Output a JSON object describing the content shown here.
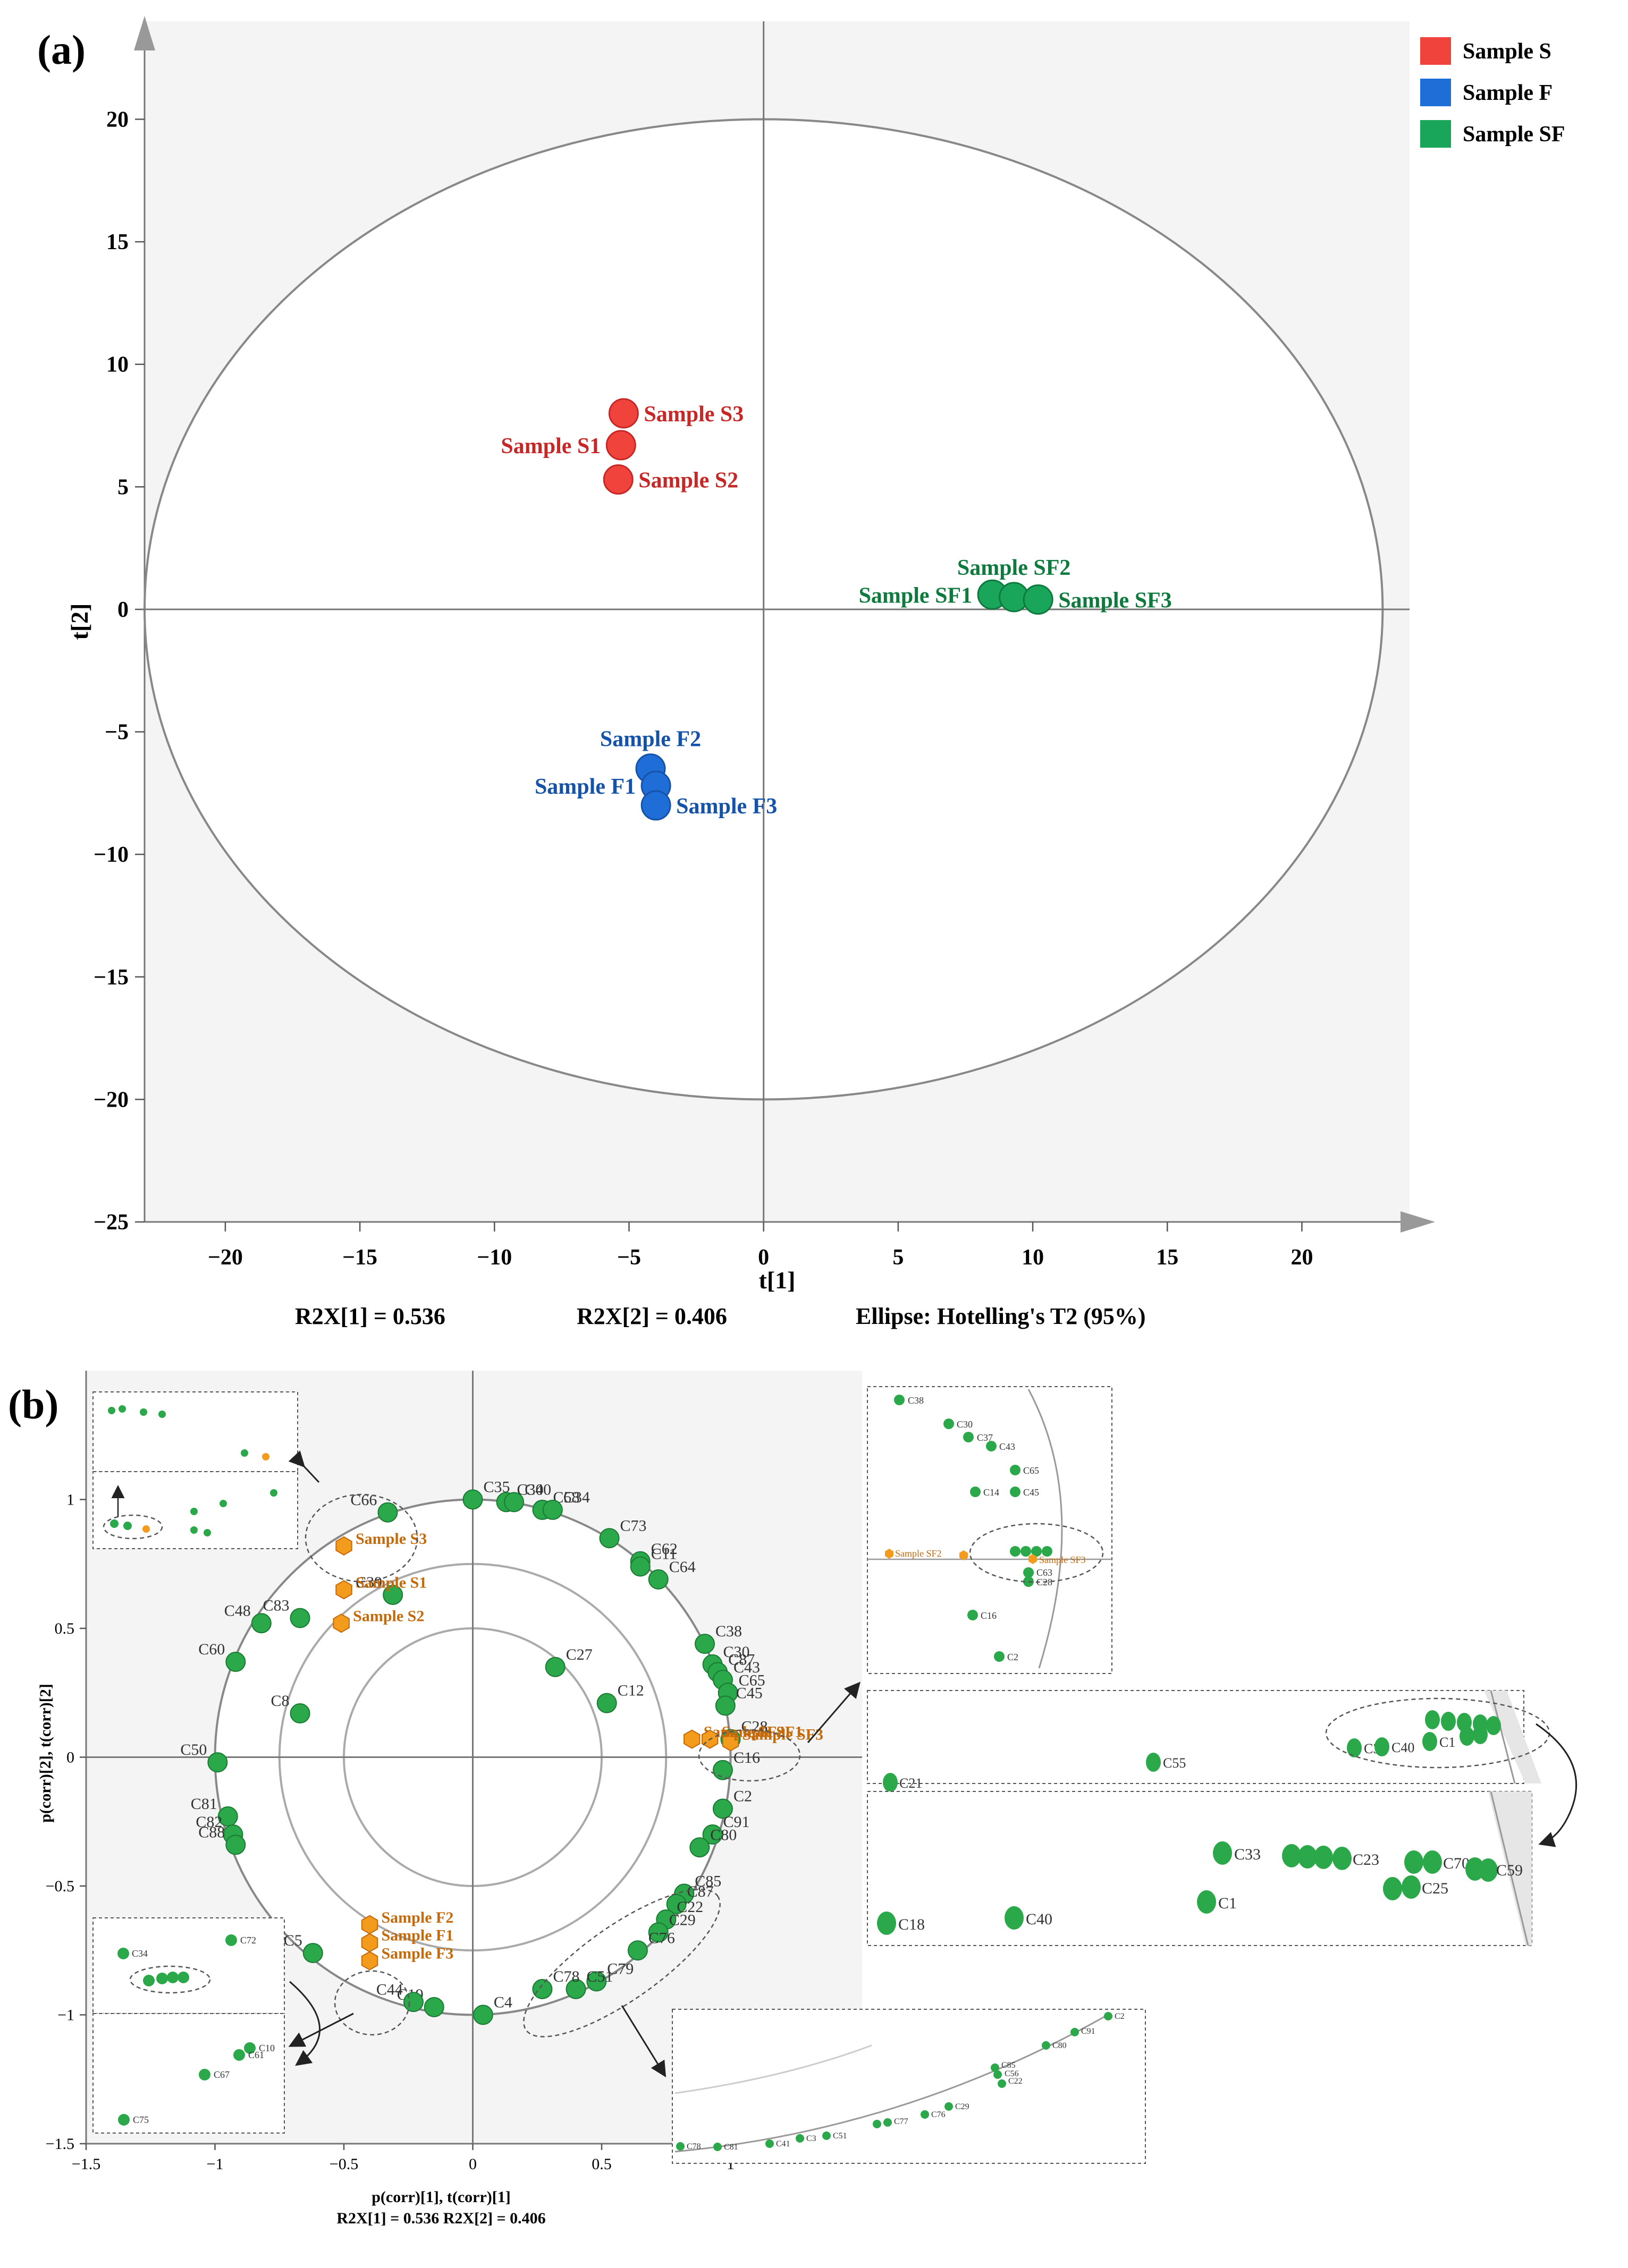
{
  "panel_a": {
    "label": "(a)",
    "footer": [
      "R2X[1] = 0.536",
      "R2X[2] = 0.406",
      "Ellipse: Hotelling's T2 (95%)"
    ]
  },
  "panel_b": {
    "label": "(b)",
    "footer": "R2X[1] = 0.536 R2X[2] = 0.406"
  },
  "colors": {
    "S": "#f0433c",
    "F": "#1f6ed8",
    "SF": "#19a55a",
    "sample_b": "#f29b1c",
    "var": "#2aa84a"
  },
  "chart_data": [
    {
      "type": "scatter",
      "title": "Scores plot",
      "xlabel": "t[1]",
      "ylabel": "t[2]",
      "xlim": [
        -23,
        24
      ],
      "ylim": [
        -25,
        24
      ],
      "xticks": [
        -20,
        -15,
        -10,
        -5,
        0,
        5,
        10,
        15,
        20
      ],
      "yticks": [
        20,
        15,
        10,
        5,
        0,
        -5,
        -10,
        -15,
        -20,
        -25
      ],
      "xtick_labels": [
        "−20",
        "−15",
        "−10",
        "−5",
        "0",
        "5",
        "10",
        "15",
        "20"
      ],
      "ytick_labels": [
        "20",
        "15",
        "10",
        "5",
        "0",
        "−5",
        "−10",
        "−15",
        "−20",
        "−25"
      ],
      "ellipse": {
        "rx": 23,
        "ry": 20
      },
      "legend": {
        "position": "top-right",
        "entries": [
          {
            "label": "Sample S",
            "group": "S"
          },
          {
            "label": "Sample F",
            "group": "F"
          },
          {
            "label": "Sample SF",
            "group": "SF"
          }
        ]
      },
      "series": [
        {
          "name": "Sample S",
          "group": "S",
          "points": [
            {
              "label": "Sample S3",
              "x": -5.2,
              "y": 8.0,
              "side": "right"
            },
            {
              "label": "Sample S1",
              "x": -5.3,
              "y": 6.7,
              "side": "left"
            },
            {
              "label": "Sample S2",
              "x": -5.4,
              "y": 5.3,
              "side": "right"
            }
          ]
        },
        {
          "name": "Sample F",
          "group": "F",
          "points": [
            {
              "label": "Sample F2",
              "x": -4.2,
              "y": -6.5,
              "side": "top"
            },
            {
              "label": "Sample F1",
              "x": -4.0,
              "y": -7.2,
              "side": "left"
            },
            {
              "label": "Sample F3",
              "x": -4.0,
              "y": -8.0,
              "side": "right"
            }
          ]
        },
        {
          "name": "Sample SF",
          "group": "SF",
          "points": [
            {
              "label": "Sample SF1",
              "x": 8.5,
              "y": 0.6,
              "side": "left"
            },
            {
              "label": "Sample SF2",
              "x": 9.3,
              "y": 0.5,
              "side": "top"
            },
            {
              "label": "Sample SF3",
              "x": 10.2,
              "y": 0.4,
              "side": "right"
            }
          ]
        }
      ]
    },
    {
      "type": "scatter",
      "title": "Correlation loadings plot",
      "xlabel": "p(corr)[1], t(corr)[1]",
      "ylabel": "p(corr)[2], t(corr)[2]",
      "xlim": [
        -1.5,
        1.5
      ],
      "ylim": [
        -1.5,
        1.5
      ],
      "xticks": [
        -1.5,
        -1,
        -0.5,
        0,
        0.5,
        1
      ],
      "yticks": [
        1,
        0.5,
        0,
        -0.5,
        -1,
        -1.5
      ],
      "xtick_labels": [
        "−1.5",
        "−1",
        "−0.5",
        "0",
        "0.5",
        "1"
      ],
      "ytick_labels": [
        "1",
        "0.5",
        "0",
        "−0.5",
        "−1",
        "−1.5"
      ],
      "circles": [
        1.0,
        0.75,
        0.5
      ],
      "samples": [
        {
          "label": "Sample S3",
          "x": -0.5,
          "y": 0.82
        },
        {
          "label": "Sample S1",
          "x": -0.5,
          "y": 0.65
        },
        {
          "label": "Sample S2",
          "x": -0.51,
          "y": 0.52
        },
        {
          "label": "Sample F2",
          "x": -0.4,
          "y": -0.65
        },
        {
          "label": "Sample F1",
          "x": -0.4,
          "y": -0.72
        },
        {
          "label": "Sample F3",
          "x": -0.4,
          "y": -0.79
        },
        {
          "label": "Sample SF3",
          "x": 1.0,
          "y": 0.06
        },
        {
          "label": "Sample SF2",
          "x": 0.85,
          "y": 0.07
        },
        {
          "label": "Sample SF1",
          "x": 0.92,
          "y": 0.07
        }
      ],
      "variables": [
        {
          "label": "C35",
          "x": 0.0,
          "y": 1.0
        },
        {
          "label": "C30",
          "x": 0.13,
          "y": 0.99
        },
        {
          "label": "C40",
          "x": 0.16,
          "y": 0.99
        },
        {
          "label": "C58",
          "x": 0.27,
          "y": 0.96
        },
        {
          "label": "C34",
          "x": 0.31,
          "y": 0.96
        },
        {
          "label": "C73",
          "x": 0.53,
          "y": 0.85
        },
        {
          "label": "C62",
          "x": 0.65,
          "y": 0.76
        },
        {
          "label": "C11",
          "x": 0.65,
          "y": 0.74
        },
        {
          "label": "C64",
          "x": 0.72,
          "y": 0.69
        },
        {
          "label": "C38",
          "x": 0.9,
          "y": 0.44
        },
        {
          "label": "C30",
          "x": 0.93,
          "y": 0.36
        },
        {
          "label": "C87",
          "x": 0.95,
          "y": 0.33
        },
        {
          "label": "C43",
          "x": 0.97,
          "y": 0.3
        },
        {
          "label": "C65",
          "x": 0.99,
          "y": 0.25
        },
        {
          "label": "C45",
          "x": 0.98,
          "y": 0.2
        },
        {
          "label": "C28",
          "x": 1.0,
          "y": 0.07
        },
        {
          "label": "C16",
          "x": 0.97,
          "y": -0.05
        },
        {
          "label": "C2",
          "x": 0.97,
          "y": -0.2
        },
        {
          "label": "C91",
          "x": 0.93,
          "y": -0.3
        },
        {
          "label": "C80",
          "x": 0.88,
          "y": -0.35
        },
        {
          "label": "C85",
          "x": 0.82,
          "y": -0.53
        },
        {
          "label": "C87",
          "x": 0.79,
          "y": -0.57
        },
        {
          "label": "C22",
          "x": 0.75,
          "y": -0.63
        },
        {
          "label": "C29",
          "x": 0.72,
          "y": -0.68
        },
        {
          "label": "C76",
          "x": 0.64,
          "y": -0.75
        },
        {
          "label": "C79",
          "x": 0.48,
          "y": -0.87
        },
        {
          "label": "C51",
          "x": 0.4,
          "y": -0.9
        },
        {
          "label": "C78",
          "x": 0.27,
          "y": -0.9
        },
        {
          "label": "C4",
          "x": 0.04,
          "y": -1.0
        },
        {
          "label": "C19",
          "x": -0.15,
          "y": -0.97
        },
        {
          "label": "C44",
          "x": -0.23,
          "y": -0.95
        },
        {
          "label": "C5",
          "x": -0.62,
          "y": -0.76
        },
        {
          "label": "C50",
          "x": -0.99,
          "y": -0.02
        },
        {
          "label": "C81",
          "x": -0.95,
          "y": -0.23
        },
        {
          "label": "C82",
          "x": -0.93,
          "y": -0.3
        },
        {
          "label": "C88",
          "x": -0.92,
          "y": -0.34
        },
        {
          "label": "C60",
          "x": -0.92,
          "y": 0.37
        },
        {
          "label": "C48",
          "x": -0.82,
          "y": 0.52
        },
        {
          "label": "C83",
          "x": -0.67,
          "y": 0.54
        },
        {
          "label": "C66",
          "x": -0.33,
          "y": 0.95
        },
        {
          "label": "C39",
          "x": -0.31,
          "y": 0.63
        },
        {
          "label": "C27",
          "x": 0.32,
          "y": 0.35
        },
        {
          "label": "C12",
          "x": 0.52,
          "y": 0.21
        },
        {
          "label": "C8",
          "x": -0.67,
          "y": 0.17
        }
      ],
      "extra_labels": [
        "C37",
        "C14",
        "C63",
        "C25",
        "C21",
        "C55",
        "C1",
        "C40",
        "C33",
        "C23",
        "C70",
        "C59",
        "C18",
        "C72",
        "C10",
        "C67",
        "C75",
        "C61",
        "C31",
        "C56",
        "C77",
        "C69"
      ]
    }
  ]
}
